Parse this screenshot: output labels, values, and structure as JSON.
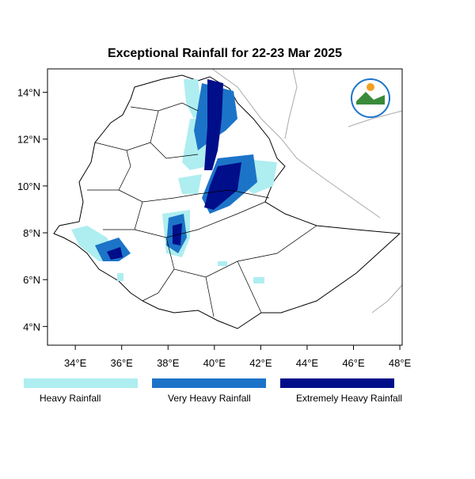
{
  "title": "Exceptional Rainfall for 22-23 Mar 2025",
  "xlim": [
    32.8,
    48.1
  ],
  "ylim": [
    3.2,
    15
  ],
  "xticks": [
    {
      "value": 34,
      "label": "34°E"
    },
    {
      "value": 36,
      "label": "36°E"
    },
    {
      "value": 38,
      "label": "38°E"
    },
    {
      "value": 40,
      "label": "40°E"
    },
    {
      "value": 42,
      "label": "42°E"
    },
    {
      "value": 44,
      "label": "44°E"
    },
    {
      "value": 46,
      "label": "46°E"
    },
    {
      "value": 48,
      "label": "48°E"
    }
  ],
  "yticks": [
    {
      "value": 4,
      "label": "4°N"
    },
    {
      "value": 6,
      "label": "6°N"
    },
    {
      "value": 8,
      "label": "8°N"
    },
    {
      "value": 10,
      "label": "10°N"
    },
    {
      "value": 12,
      "label": "12°N"
    },
    {
      "value": 14,
      "label": "14°N"
    }
  ],
  "legend": [
    {
      "label": "Heavy Rainfall",
      "color": "#aeeef0"
    },
    {
      "label": "Very Heavy Rainfall",
      "color": "#1c74c8"
    },
    {
      "label": "Extremely Heavy Rainfall",
      "color": "#000e8a"
    }
  ]
}
